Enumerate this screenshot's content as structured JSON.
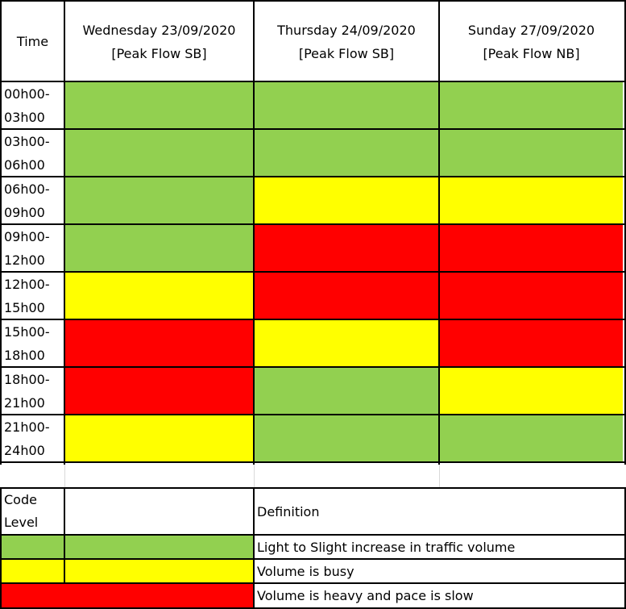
{
  "colors": {
    "green": "#92d050",
    "yellow": "#ffff00",
    "red": "#ff0000"
  },
  "header": {
    "time_label": "Time",
    "days": [
      {
        "day": "Wednesday  23/09/2020",
        "flow": "[Peak Flow SB]"
      },
      {
        "day": "Thursday  24/09/2020",
        "flow": "[Peak Flow SB]"
      },
      {
        "day": "Sunday 27/09/2020",
        "flow": "[Peak Flow NB]"
      }
    ]
  },
  "rows": [
    {
      "time_start": "00h00-",
      "time_end": "03h00",
      "levels": [
        "green",
        "green",
        "green"
      ]
    },
    {
      "time_start": "03h00-",
      "time_end": "06h00",
      "levels": [
        "green",
        "green",
        "green"
      ]
    },
    {
      "time_start": "06h00-",
      "time_end": "09h00",
      "levels": [
        "green",
        "yellow",
        "yellow"
      ]
    },
    {
      "time_start": "09h00-",
      "time_end": "12h00",
      "levels": [
        "green",
        "red",
        "red"
      ]
    },
    {
      "time_start": "12h00-",
      "time_end": "15h00",
      "levels": [
        "yellow",
        "red",
        "red"
      ]
    },
    {
      "time_start": "15h00-",
      "time_end": "18h00",
      "levels": [
        "red",
        "yellow",
        "red"
      ]
    },
    {
      "time_start": "18h00-",
      "time_end": "21h00",
      "levels": [
        "red",
        "green",
        "yellow"
      ]
    },
    {
      "time_start": "21h00-",
      "time_end": "24h00",
      "levels": [
        "yellow",
        "green",
        "green"
      ]
    }
  ],
  "legend": {
    "code_label_1": "Code",
    "code_label_2": "Level",
    "definition_label": "Definition",
    "items": [
      {
        "level": "green",
        "definition": "Light to Slight increase in traffic volume"
      },
      {
        "level": "yellow",
        "definition": "Volume is busy"
      },
      {
        "level": "red",
        "definition": "Volume is heavy and pace is slow"
      }
    ]
  }
}
